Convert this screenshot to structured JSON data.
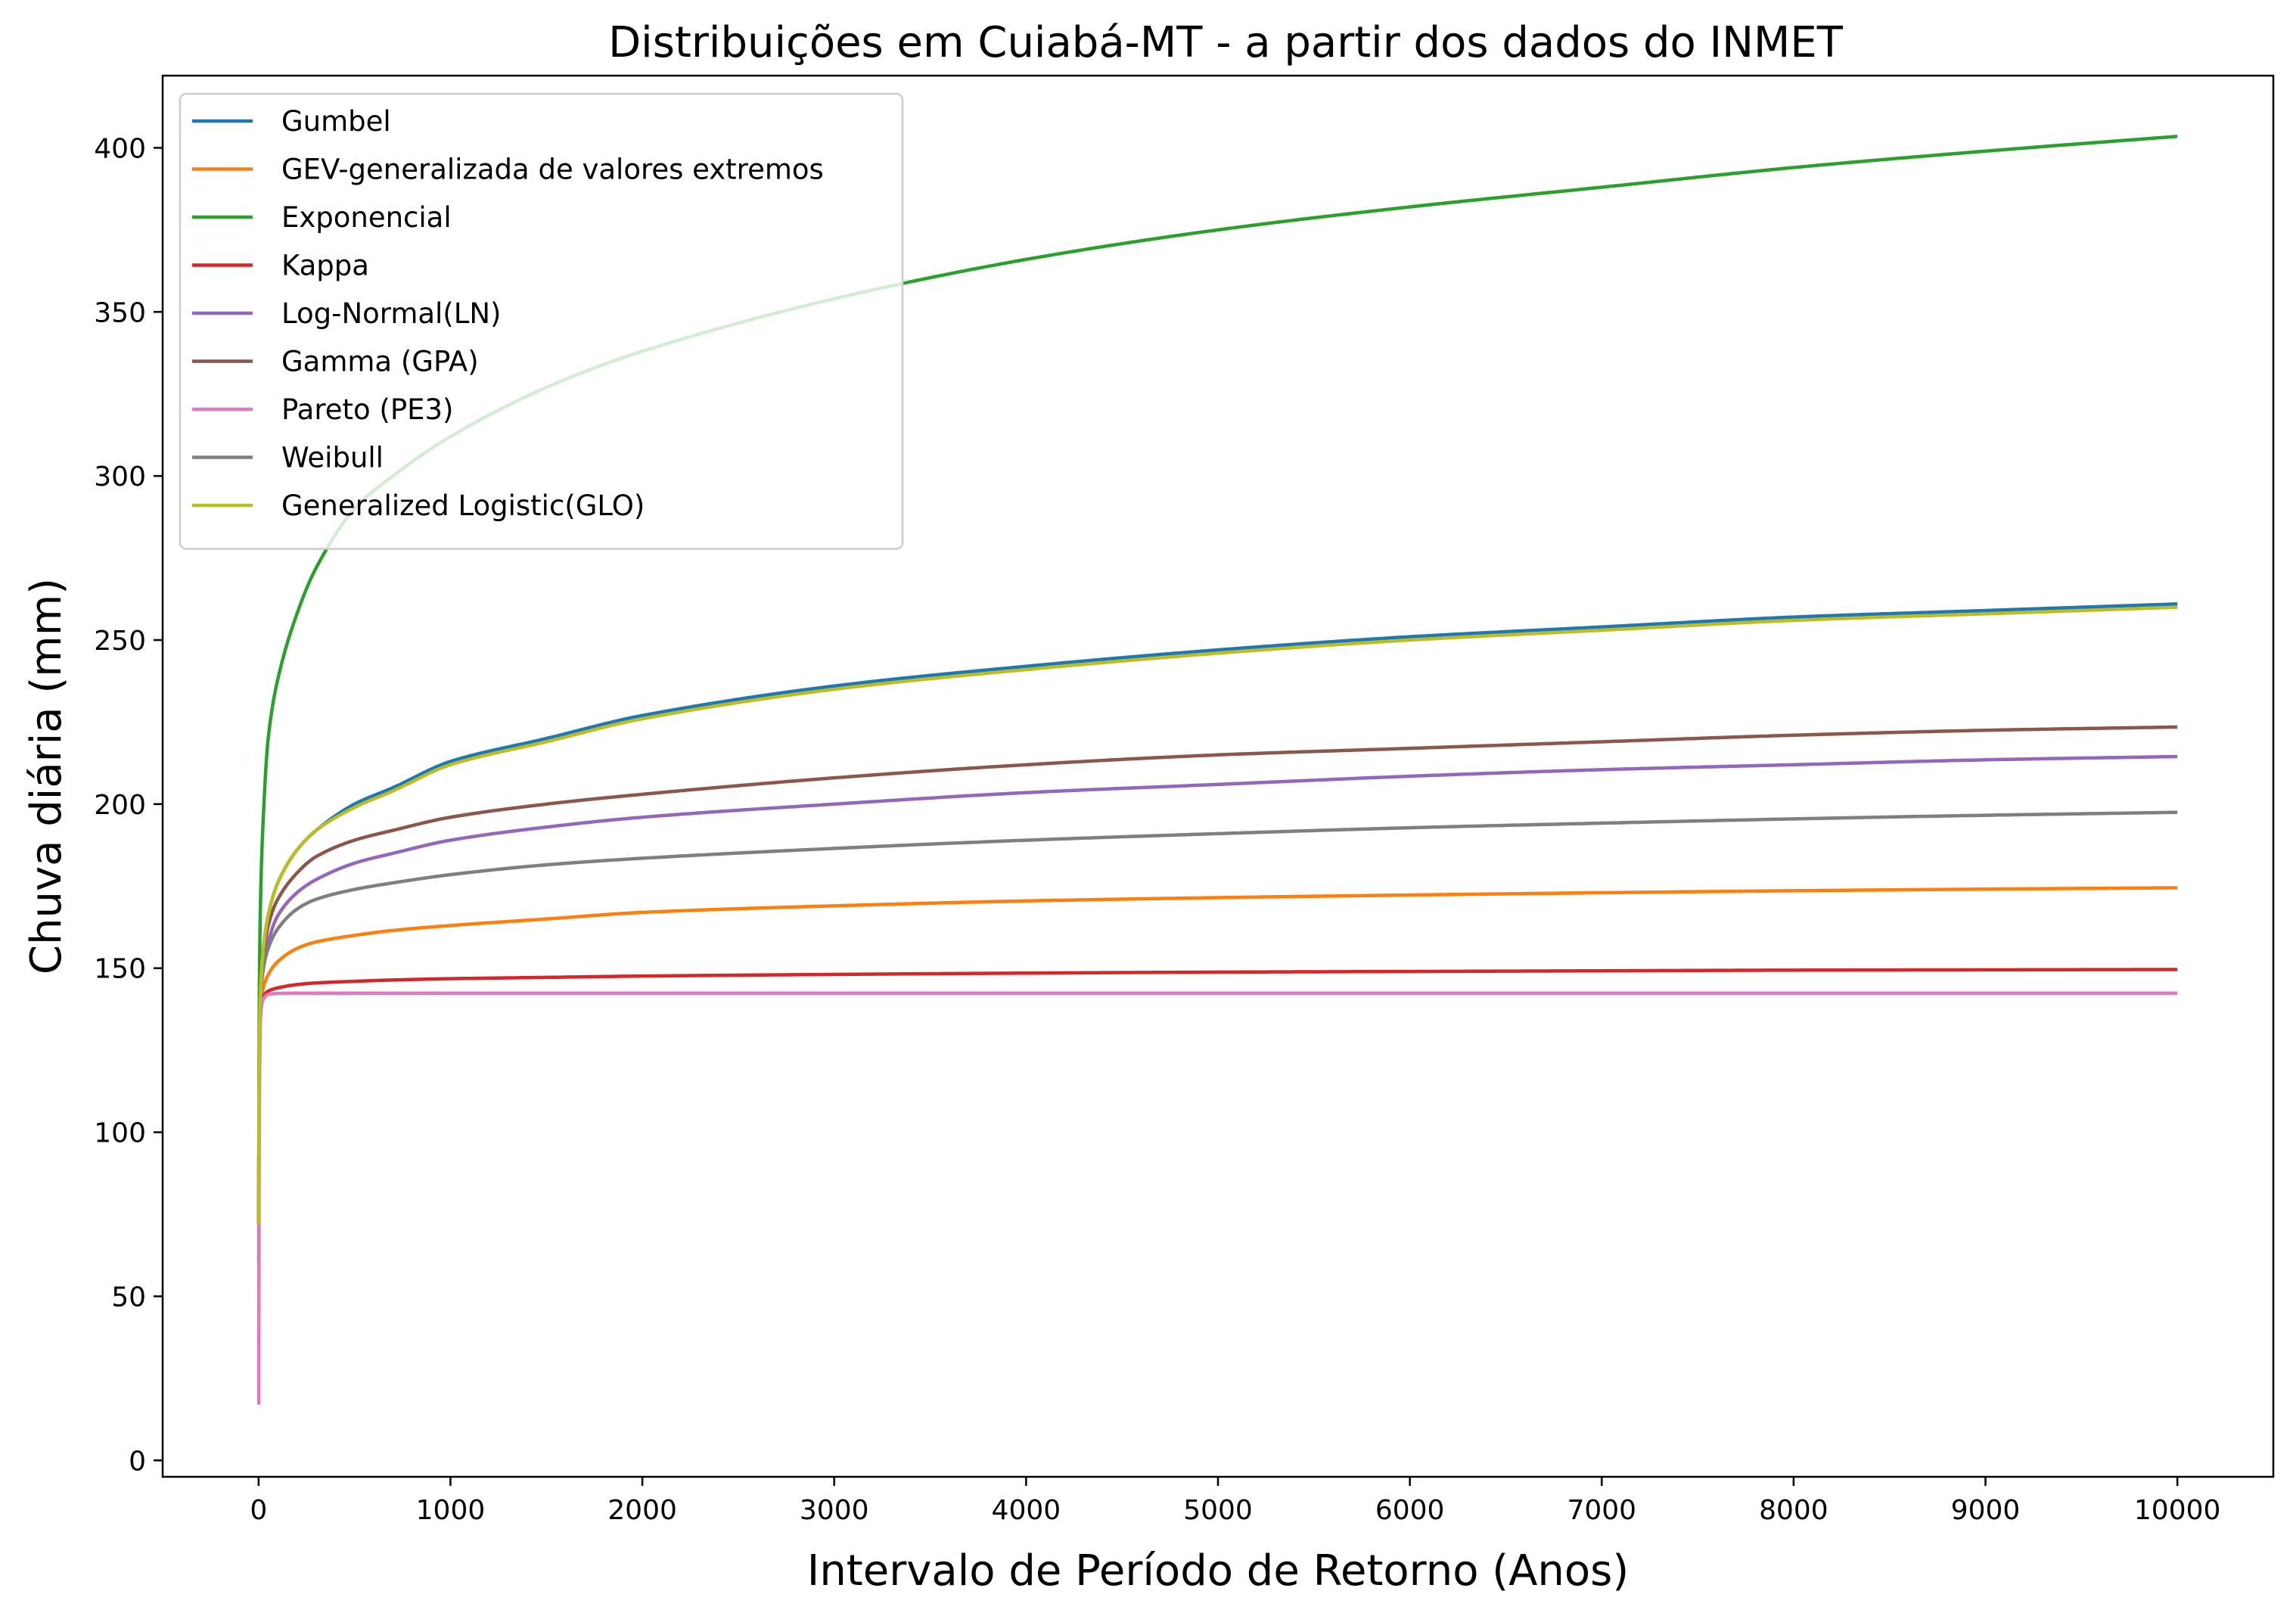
{
  "chart_data": {
    "type": "line",
    "title": "Distribuições em Cuiabá-MT - a partir dos dados do INMET",
    "xlabel": "Intervalo de Período de Retorno (Anos)",
    "ylabel": "Chuva diária (mm)",
    "xlim": [
      -500,
      10500
    ],
    "ylim": [
      -5,
      422
    ],
    "xticks": [
      0,
      1000,
      2000,
      3000,
      4000,
      5000,
      6000,
      7000,
      8000,
      9000,
      10000
    ],
    "yticks": [
      0,
      50,
      100,
      150,
      200,
      250,
      300,
      350,
      400
    ],
    "grid": false,
    "legend_position": "top-left",
    "x": [
      1,
      2,
      5,
      10,
      20,
      50,
      100,
      200,
      300,
      500,
      700,
      1000,
      1500,
      2000,
      3000,
      4000,
      5000,
      6000,
      7000,
      8000,
      9000,
      10000
    ],
    "series": [
      {
        "name": "Gumbel",
        "color": "#1f77b4",
        "values": [
          72,
          110,
          130,
          142,
          153,
          166,
          176,
          186,
          192,
          200,
          205,
          213,
          220,
          227,
          236,
          242,
          247,
          251,
          254,
          257,
          259,
          261
        ]
      },
      {
        "name": "GEV-generalizada de valores extremos",
        "color": "#ff7f0e",
        "values": [
          72,
          110,
          130,
          138,
          143,
          148,
          152,
          156,
          158,
          160,
          161.5,
          163,
          165,
          167,
          169,
          170.5,
          171.5,
          172.3,
          173,
          173.6,
          174.1,
          174.5
        ]
      },
      {
        "name": "Exponencial",
        "color": "#2ca02c",
        "values": [
          60,
          115,
          150,
          170,
          190,
          220,
          238,
          258,
          272,
          290,
          300,
          312,
          327,
          338,
          354,
          366,
          375,
          382,
          388,
          394,
          399,
          403.5
        ]
      },
      {
        "name": "Kappa",
        "color": "#d62728",
        "values": [
          72,
          110,
          130,
          138,
          141,
          143,
          144,
          145,
          145.5,
          146,
          146.4,
          146.8,
          147.2,
          147.6,
          148.1,
          148.5,
          148.8,
          149,
          149.2,
          149.4,
          149.5,
          149.6
        ]
      },
      {
        "name": "Log-Normal(LN)",
        "color": "#9467bd",
        "values": [
          72,
          110,
          130,
          140,
          148,
          158,
          166,
          173,
          177,
          182,
          185,
          189,
          193,
          196,
          200,
          203.5,
          206,
          208.5,
          210.5,
          212,
          213.5,
          214.5
        ]
      },
      {
        "name": "Gamma (GPA)",
        "color": "#8c564b",
        "values": [
          72,
          110,
          130,
          141,
          151,
          163,
          171,
          179,
          184,
          189,
          192,
          196,
          200,
          203,
          208,
          212,
          215,
          217,
          219,
          221,
          222.5,
          223.5
        ]
      },
      {
        "name": "Pareto (PE3)",
        "color": "#e377c2",
        "values": [
          17,
          62,
          115,
          135,
          140,
          142,
          142.3,
          142.4,
          142.4,
          142.4,
          142.4,
          142.4,
          142.4,
          142.4,
          142.4,
          142.4,
          142.4,
          142.4,
          142.4,
          142.4,
          142.4,
          142.4
        ]
      },
      {
        "name": "Weibull",
        "color": "#7f7f7f",
        "values": [
          72,
          110,
          130,
          140,
          148,
          156,
          162,
          168,
          171,
          174,
          176,
          178.5,
          181.5,
          183.5,
          186.5,
          189,
          191,
          192.8,
          194.2,
          195.5,
          196.6,
          197.5
        ]
      },
      {
        "name": "Generalized Logistic(GLO)",
        "color": "#bcbd22",
        "values": [
          72,
          110,
          130,
          142,
          153,
          166,
          176,
          186,
          192,
          199,
          204,
          212,
          219,
          226,
          235,
          241,
          246,
          250,
          253,
          256,
          258,
          260
        ]
      }
    ]
  }
}
